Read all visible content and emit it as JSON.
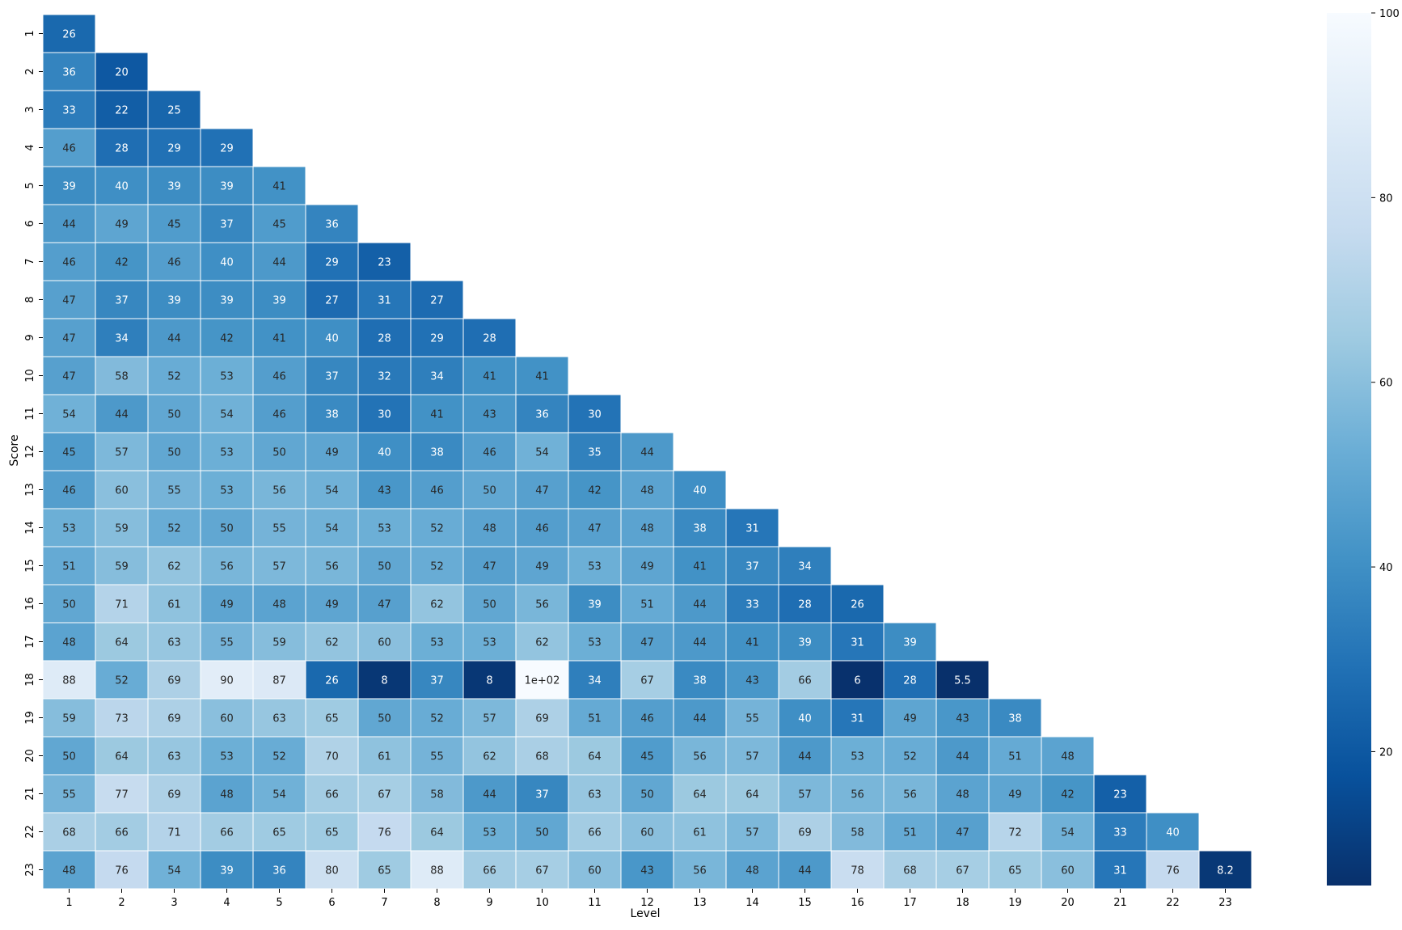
{
  "chart_data": {
    "type": "heatmap",
    "title": "",
    "xlabel": "Level",
    "ylabel": "Score",
    "x_categories": [
      "1",
      "2",
      "3",
      "4",
      "5",
      "6",
      "7",
      "8",
      "9",
      "10",
      "11",
      "12",
      "13",
      "14",
      "15",
      "16",
      "17",
      "18",
      "19",
      "20",
      "21",
      "22",
      "23"
    ],
    "y_categories": [
      "1",
      "2",
      "3",
      "4",
      "5",
      "6",
      "7",
      "8",
      "9",
      "10",
      "11",
      "12",
      "13",
      "14",
      "15",
      "16",
      "17",
      "18",
      "19",
      "20",
      "21",
      "22",
      "23"
    ],
    "values": [
      [
        26
      ],
      [
        36,
        20
      ],
      [
        33,
        22,
        25
      ],
      [
        46,
        28,
        29,
        29
      ],
      [
        39,
        40,
        39,
        39,
        41
      ],
      [
        44,
        49,
        45,
        37,
        45,
        36
      ],
      [
        46,
        42,
        46,
        40,
        44,
        29,
        23
      ],
      [
        47,
        37,
        39,
        39,
        39,
        27,
        31,
        27
      ],
      [
        47,
        34,
        44,
        42,
        41,
        40,
        28,
        29,
        28
      ],
      [
        47,
        58,
        52,
        53,
        46,
        37,
        32,
        34,
        41,
        41
      ],
      [
        54,
        44,
        50,
        54,
        46,
        38,
        30,
        41,
        43,
        36,
        30
      ],
      [
        45,
        57,
        50,
        53,
        50,
        49,
        40,
        38,
        46,
        54,
        35,
        44
      ],
      [
        46,
        60,
        55,
        53,
        56,
        54,
        43,
        46,
        50,
        47,
        42,
        48,
        40
      ],
      [
        53,
        59,
        52,
        50,
        55,
        54,
        53,
        52,
        48,
        46,
        47,
        48,
        38,
        31
      ],
      [
        51,
        59,
        62,
        56,
        57,
        56,
        50,
        52,
        47,
        49,
        53,
        49,
        41,
        37,
        34
      ],
      [
        50,
        71,
        61,
        49,
        48,
        49,
        47,
        62,
        50,
        56,
        39,
        51,
        44,
        33,
        28,
        26
      ],
      [
        48,
        64,
        63,
        55,
        59,
        62,
        60,
        53,
        53,
        62,
        53,
        47,
        44,
        41,
        39,
        31,
        39
      ],
      [
        88,
        52,
        69,
        90,
        87,
        26,
        8,
        37,
        8,
        100,
        34,
        67,
        38,
        43,
        66,
        6,
        28,
        5.5
      ],
      [
        59,
        73,
        69,
        60,
        63,
        65,
        50,
        52,
        57,
        69,
        51,
        46,
        44,
        55,
        40,
        31,
        49,
        43,
        38
      ],
      [
        50,
        64,
        63,
        53,
        52,
        70,
        61,
        55,
        62,
        68,
        64,
        45,
        56,
        57,
        44,
        53,
        52,
        44,
        51,
        48
      ],
      [
        55,
        77,
        69,
        48,
        54,
        66,
        67,
        58,
        44,
        37,
        63,
        50,
        64,
        64,
        57,
        56,
        56,
        48,
        49,
        42,
        23
      ],
      [
        68,
        66,
        71,
        66,
        65,
        65,
        76,
        64,
        53,
        50,
        66,
        60,
        61,
        57,
        69,
        58,
        51,
        47,
        72,
        54,
        33,
        40
      ],
      [
        48,
        76,
        54,
        39,
        36,
        80,
        65,
        88,
        66,
        67,
        60,
        43,
        56,
        48,
        44,
        78,
        68,
        67,
        65,
        60,
        31,
        76,
        8.2
      ]
    ],
    "labels": [
      [
        "26"
      ],
      [
        "36",
        "20"
      ],
      [
        "33",
        "22",
        "25"
      ],
      [
        "46",
        "28",
        "29",
        "29"
      ],
      [
        "39",
        "40",
        "39",
        "39",
        "41"
      ],
      [
        "44",
        "49",
        "45",
        "37",
        "45",
        "36"
      ],
      [
        "46",
        "42",
        "46",
        "40",
        "44",
        "29",
        "23"
      ],
      [
        "47",
        "37",
        "39",
        "39",
        "39",
        "27",
        "31",
        "27"
      ],
      [
        "47",
        "34",
        "44",
        "42",
        "41",
        "40",
        "28",
        "29",
        "28"
      ],
      [
        "47",
        "58",
        "52",
        "53",
        "46",
        "37",
        "32",
        "34",
        "41",
        "41"
      ],
      [
        "54",
        "44",
        "50",
        "54",
        "46",
        "38",
        "30",
        "41",
        "43",
        "36",
        "30"
      ],
      [
        "45",
        "57",
        "50",
        "53",
        "50",
        "49",
        "40",
        "38",
        "46",
        "54",
        "35",
        "44"
      ],
      [
        "46",
        "60",
        "55",
        "53",
        "56",
        "54",
        "43",
        "46",
        "50",
        "47",
        "42",
        "48",
        "40"
      ],
      [
        "53",
        "59",
        "52",
        "50",
        "55",
        "54",
        "53",
        "52",
        "48",
        "46",
        "47",
        "48",
        "38",
        "31"
      ],
      [
        "51",
        "59",
        "62",
        "56",
        "57",
        "56",
        "50",
        "52",
        "47",
        "49",
        "53",
        "49",
        "41",
        "37",
        "34"
      ],
      [
        "50",
        "71",
        "61",
        "49",
        "48",
        "49",
        "47",
        "62",
        "50",
        "56",
        "39",
        "51",
        "44",
        "33",
        "28",
        "26"
      ],
      [
        "48",
        "64",
        "63",
        "55",
        "59",
        "62",
        "60",
        "53",
        "53",
        "62",
        "53",
        "47",
        "44",
        "41",
        "39",
        "31",
        "39"
      ],
      [
        "88",
        "52",
        "69",
        "90",
        "87",
        "26",
        "8",
        "37",
        "8",
        "1e+02",
        "34",
        "67",
        "38",
        "43",
        "66",
        "6",
        "28",
        "5.5"
      ],
      [
        "59",
        "73",
        "69",
        "60",
        "63",
        "65",
        "50",
        "52",
        "57",
        "69",
        "51",
        "46",
        "44",
        "55",
        "40",
        "31",
        "49",
        "43",
        "38"
      ],
      [
        "50",
        "64",
        "63",
        "53",
        "52",
        "70",
        "61",
        "55",
        "62",
        "68",
        "64",
        "45",
        "56",
        "57",
        "44",
        "53",
        "52",
        "44",
        "51",
        "48"
      ],
      [
        "55",
        "77",
        "69",
        "48",
        "54",
        "66",
        "67",
        "58",
        "44",
        "37",
        "63",
        "50",
        "64",
        "64",
        "57",
        "56",
        "56",
        "48",
        "49",
        "42",
        "23"
      ],
      [
        "68",
        "66",
        "71",
        "66",
        "65",
        "65",
        "76",
        "64",
        "53",
        "50",
        "66",
        "60",
        "61",
        "57",
        "69",
        "58",
        "51",
        "47",
        "72",
        "54",
        "33",
        "40"
      ],
      [
        "48",
        "76",
        "54",
        "39",
        "36",
        "80",
        "65",
        "88",
        "66",
        "67",
        "60",
        "43",
        "56",
        "48",
        "44",
        "78",
        "68",
        "67",
        "65",
        "60",
        "31",
        "76",
        "8.2"
      ]
    ],
    "colormap": "Blues_r",
    "vmin": 5.5,
    "vmax": 100,
    "colorbar": {
      "ticks": [
        20,
        40,
        60,
        80,
        100
      ],
      "tick_labels": [
        "20",
        "40",
        "60",
        "80",
        "100"
      ]
    },
    "colors": {
      "dark": "#08306b",
      "light": "#f7fbff",
      "cell_border": "#ffffff"
    }
  }
}
